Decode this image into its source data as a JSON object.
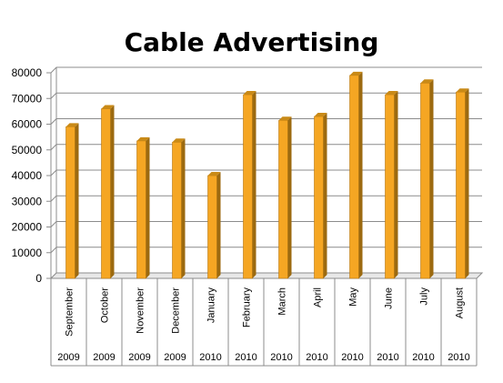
{
  "chart_data": {
    "type": "bar",
    "title": "Cable Advertising",
    "xlabel": "",
    "ylabel": "",
    "ylim": [
      0,
      80000
    ],
    "yticks": [
      0,
      10000,
      20000,
      30000,
      40000,
      50000,
      60000,
      70000,
      80000
    ],
    "grid": true,
    "legend": "none",
    "bar_color": "#F5A623",
    "categories": [
      "September",
      "October",
      "November",
      "December",
      "January",
      "February",
      "March",
      "April",
      "May",
      "June",
      "July",
      "August"
    ],
    "years": [
      "2009",
      "2009",
      "2009",
      "2009",
      "2010",
      "2010",
      "2010",
      "2010",
      "2010",
      "2010",
      "2010",
      "2010"
    ],
    "values": [
      59000,
      66000,
      53500,
      53000,
      40000,
      71500,
      61500,
      63000,
      79000,
      71500,
      76000,
      72500
    ]
  }
}
